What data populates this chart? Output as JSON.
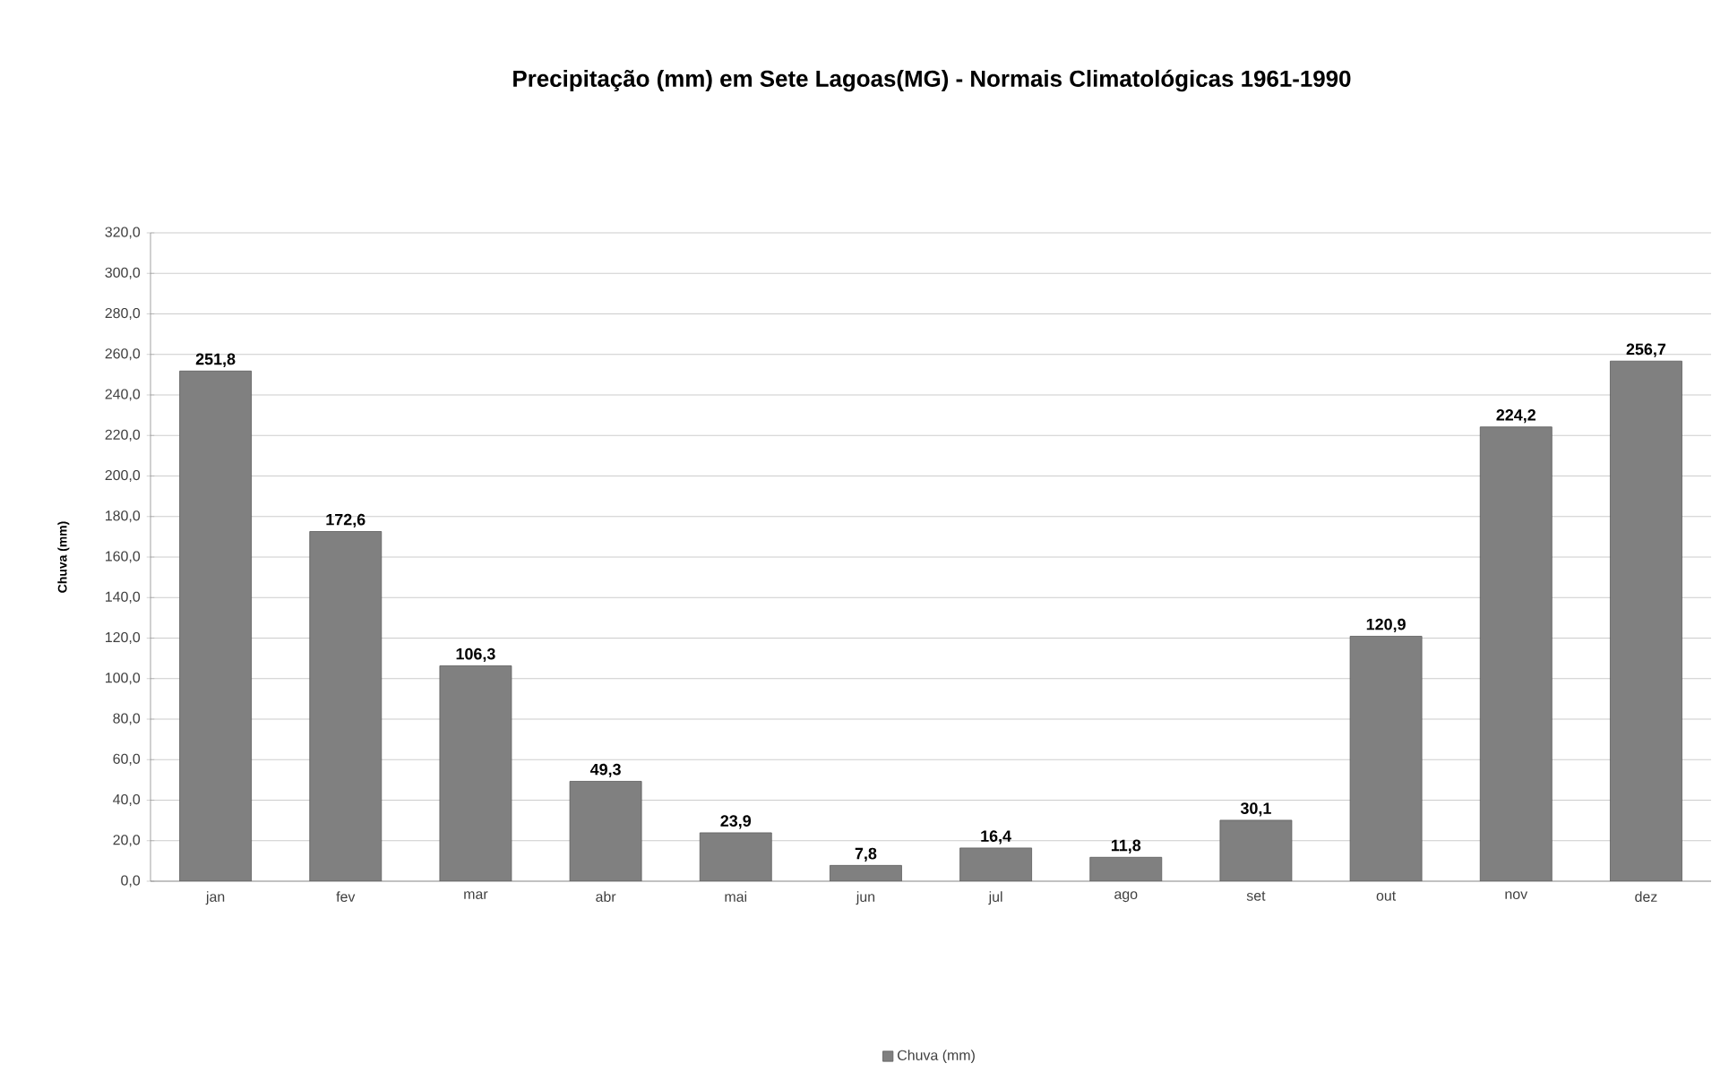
{
  "chart_data": {
    "type": "bar",
    "title": "Precipitação (mm) em Sete Lagoas(MG) - Normais Climatológicas 1961-1990",
    "ylabel": "Chuva (mm)",
    "categories": [
      "jan",
      "fev",
      "mar",
      "abr",
      "mai",
      "jun",
      "jul",
      "ago",
      "set",
      "out",
      "nov",
      "dez"
    ],
    "series": [
      {
        "name": "Chuva (mm)",
        "color": "#808080",
        "values": [
          251.8,
          172.6,
          106.3,
          49.3,
          23.9,
          7.8,
          16.4,
          11.8,
          30.1,
          120.9,
          224.2,
          256.7
        ],
        "value_labels": [
          "251,8",
          "172,6",
          "106,3",
          "49,3",
          "23,9",
          "7,8",
          "16,4",
          "11,8",
          "30,1",
          "120,9",
          "224,2",
          "256,7"
        ]
      }
    ],
    "ylim": [
      0,
      320
    ],
    "yticks": [
      {
        "value": 0,
        "label": "0,0"
      },
      {
        "value": 20,
        "label": "20,0"
      },
      {
        "value": 40,
        "label": "40,0"
      },
      {
        "value": 60,
        "label": "60,0"
      },
      {
        "value": 80,
        "label": "80,0"
      },
      {
        "value": 100,
        "label": "100,0"
      },
      {
        "value": 120,
        "label": "120,0"
      },
      {
        "value": 140,
        "label": "140,0"
      },
      {
        "value": 160,
        "label": "160,0"
      },
      {
        "value": 180,
        "label": "180,0"
      },
      {
        "value": 200,
        "label": "200,0"
      },
      {
        "value": 220,
        "label": "220,0"
      },
      {
        "value": 240,
        "label": "240,0"
      },
      {
        "value": 260,
        "label": "260,0"
      },
      {
        "value": 280,
        "label": "280,0"
      },
      {
        "value": 300,
        "label": "300,0"
      },
      {
        "value": 320,
        "label": "320,0"
      }
    ],
    "grid": "y",
    "legend": "bottom"
  }
}
